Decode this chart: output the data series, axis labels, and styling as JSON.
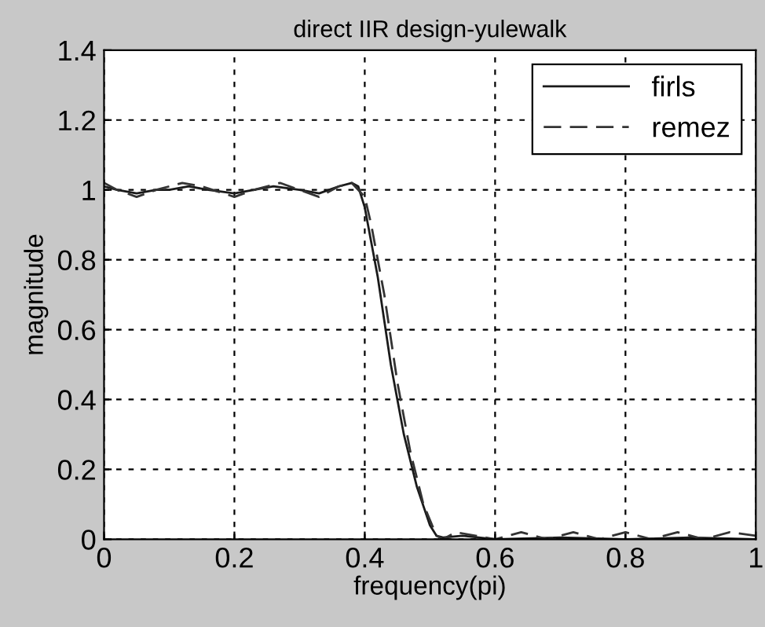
{
  "chart_data": {
    "type": "line",
    "title": "direct IIR design-yulewalk",
    "xlabel": "frequency(pi)",
    "ylabel": "magnitude",
    "xlim": [
      0,
      1
    ],
    "xticks": [
      0,
      0.2,
      0.4,
      0.6,
      0.8,
      1
    ],
    "ylim": [
      0,
      1.4
    ],
    "yticks": [
      0,
      0.2,
      0.4,
      0.6,
      0.8,
      1,
      1.2,
      1.4
    ],
    "grid": true,
    "legend": "top right",
    "series": [
      {
        "name": "firls",
        "color": "#1a1a1a",
        "line_style": "solid",
        "x": [
          0,
          0.02,
          0.05,
          0.08,
          0.1,
          0.13,
          0.16,
          0.2,
          0.23,
          0.26,
          0.3,
          0.33,
          0.36,
          0.38,
          0.39,
          0.4,
          0.42,
          0.44,
          0.46,
          0.48,
          0.5,
          0.51,
          0.52,
          0.55,
          0.6,
          0.7,
          0.8,
          0.9,
          1.0
        ],
        "values": [
          1.01,
          1.0,
          0.99,
          1.0,
          1.0,
          1.01,
          1.0,
          0.99,
          1.0,
          1.01,
          1.0,
          0.99,
          1.01,
          1.02,
          1.01,
          0.95,
          0.75,
          0.5,
          0.3,
          0.15,
          0.04,
          0.01,
          0.005,
          0.01,
          0.0,
          0.005,
          0.0,
          0.005,
          0.0
        ]
      },
      {
        "name": "remez",
        "color": "#333333",
        "line_style": "dashed",
        "x": [
          0,
          0.02,
          0.05,
          0.08,
          0.12,
          0.15,
          0.2,
          0.23,
          0.27,
          0.3,
          0.33,
          0.36,
          0.38,
          0.4,
          0.41,
          0.43,
          0.45,
          0.47,
          0.49,
          0.51,
          0.52,
          0.54,
          0.57,
          0.6,
          0.64,
          0.68,
          0.72,
          0.76,
          0.8,
          0.84,
          0.88,
          0.92,
          0.96,
          1.0
        ],
        "values": [
          1.02,
          1.0,
          0.98,
          1.0,
          1.02,
          1.01,
          0.98,
          1.0,
          1.02,
          1.0,
          0.98,
          1.01,
          1.02,
          0.98,
          0.9,
          0.7,
          0.45,
          0.25,
          0.1,
          0.01,
          0.0,
          0.02,
          0.01,
          0.0,
          0.02,
          0.0,
          0.02,
          0.0,
          0.02,
          0.0,
          0.02,
          0.0,
          0.02,
          0.01
        ]
      }
    ]
  }
}
